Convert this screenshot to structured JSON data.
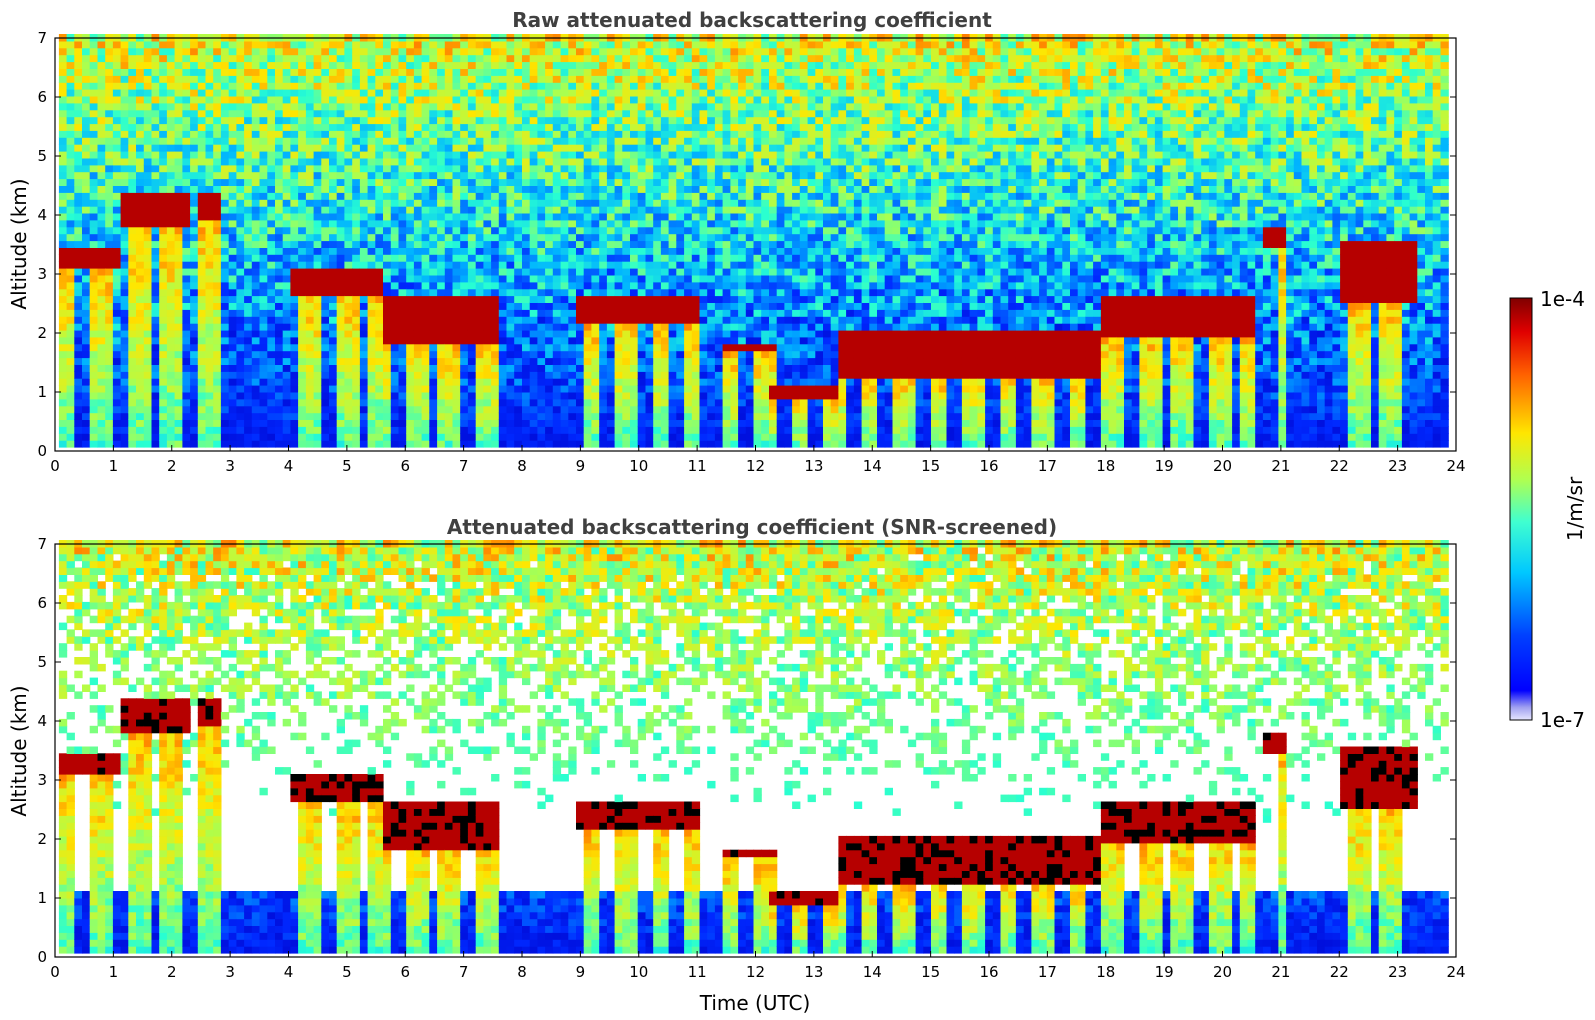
{
  "chart_data": [
    {
      "type": "heatmap",
      "title": "Raw attenuated backscattering coefficient",
      "xlabel": "",
      "ylabel": "Altitude (km)",
      "xlim": [
        0,
        24
      ],
      "ylim": [
        0,
        7
      ],
      "x_ticks": [
        "0",
        "1",
        "2",
        "3",
        "4",
        "5",
        "6",
        "7",
        "8",
        "9",
        "10",
        "11",
        "12",
        "13",
        "14",
        "15",
        "16",
        "17",
        "18",
        "19",
        "20",
        "21",
        "22",
        "23",
        "24"
      ],
      "y_ticks": [
        "0",
        "1",
        "2",
        "3",
        "4",
        "5",
        "6",
        "7"
      ],
      "data_end_time": 23.8,
      "screened": false,
      "cloud_layers": [
        {
          "t": [
            0.0,
            1.1
          ],
          "alt": [
            3.05,
            3.35
          ]
        },
        {
          "t": [
            1.0,
            2.2
          ],
          "alt": [
            3.75,
            4.3
          ]
        },
        {
          "t": [
            2.4,
            2.8
          ],
          "alt": [
            3.9,
            4.3
          ]
        },
        {
          "t": [
            4.0,
            5.6
          ],
          "alt": [
            2.6,
            3.0
          ]
        },
        {
          "t": [
            5.5,
            7.5
          ],
          "alt": [
            1.8,
            2.6
          ]
        },
        {
          "t": [
            8.9,
            11.0
          ],
          "alt": [
            2.1,
            2.6
          ]
        },
        {
          "t": [
            11.4,
            12.3
          ],
          "alt": [
            1.6,
            1.8
          ]
        },
        {
          "t": [
            12.2,
            13.3
          ],
          "alt": [
            0.8,
            1.0
          ]
        },
        {
          "t": [
            13.3,
            17.8
          ],
          "alt": [
            1.2,
            2.0
          ]
        },
        {
          "t": [
            17.8,
            20.5
          ],
          "alt": [
            1.9,
            2.6
          ]
        },
        {
          "t": [
            20.6,
            21.0
          ],
          "alt": [
            3.4,
            3.7
          ]
        },
        {
          "t": [
            21.9,
            23.3
          ],
          "alt": [
            2.5,
            3.5
          ]
        }
      ],
      "colorbar": {
        "min_label": "1e-7",
        "max_label": "1e-4",
        "label": "1/m/sr",
        "scale": "log",
        "colormap": "jet"
      }
    },
    {
      "type": "heatmap",
      "title": "Attenuated backscattering coefficient (SNR-screened)",
      "xlabel": "Time (UTC)",
      "ylabel": "Altitude (km)",
      "xlim": [
        0,
        24
      ],
      "ylim": [
        0,
        7
      ],
      "x_ticks": [
        "0",
        "1",
        "2",
        "3",
        "4",
        "5",
        "6",
        "7",
        "8",
        "9",
        "10",
        "11",
        "12",
        "13",
        "14",
        "15",
        "16",
        "17",
        "18",
        "19",
        "20",
        "21",
        "22",
        "23",
        "24"
      ],
      "y_ticks": [
        "0",
        "1",
        "2",
        "3",
        "4",
        "5",
        "6",
        "7"
      ],
      "data_end_time": 23.8,
      "screened": true,
      "colorbar": {
        "min_label": "1e-7",
        "max_label": "1e-4",
        "label": "1/m/sr",
        "scale": "log",
        "colormap": "jet"
      }
    }
  ]
}
